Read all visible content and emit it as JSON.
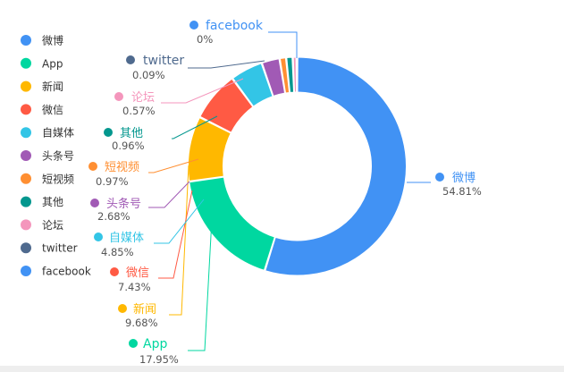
{
  "chart_data": {
    "type": "pie",
    "variant": "donut",
    "categories": [
      "微博",
      "App",
      "新闻",
      "微信",
      "自媒体",
      "头条号",
      "短视频",
      "其他",
      "论坛",
      "twitter",
      "facebook"
    ],
    "values": [
      54.81,
      17.95,
      9.68,
      7.43,
      4.85,
      2.68,
      0.97,
      0.96,
      0.57,
      0.09,
      0
    ],
    "value_labels": [
      "54.81%",
      "17.95%",
      "9.68%",
      "7.43%",
      "4.85%",
      "2.68%",
      "0.97%",
      "0.96%",
      "0.57%",
      "0.09%",
      "0%"
    ],
    "colors": [
      "#4192f4",
      "#00d7a0",
      "#ffb800",
      "#ff5a44",
      "#33c5e6",
      "#a15ab5",
      "#ff8f32",
      "#03978e",
      "#f496bc",
      "#4f6a8e",
      "#4192f4"
    ],
    "legend_position": "left",
    "title": "",
    "label_lines": true
  }
}
